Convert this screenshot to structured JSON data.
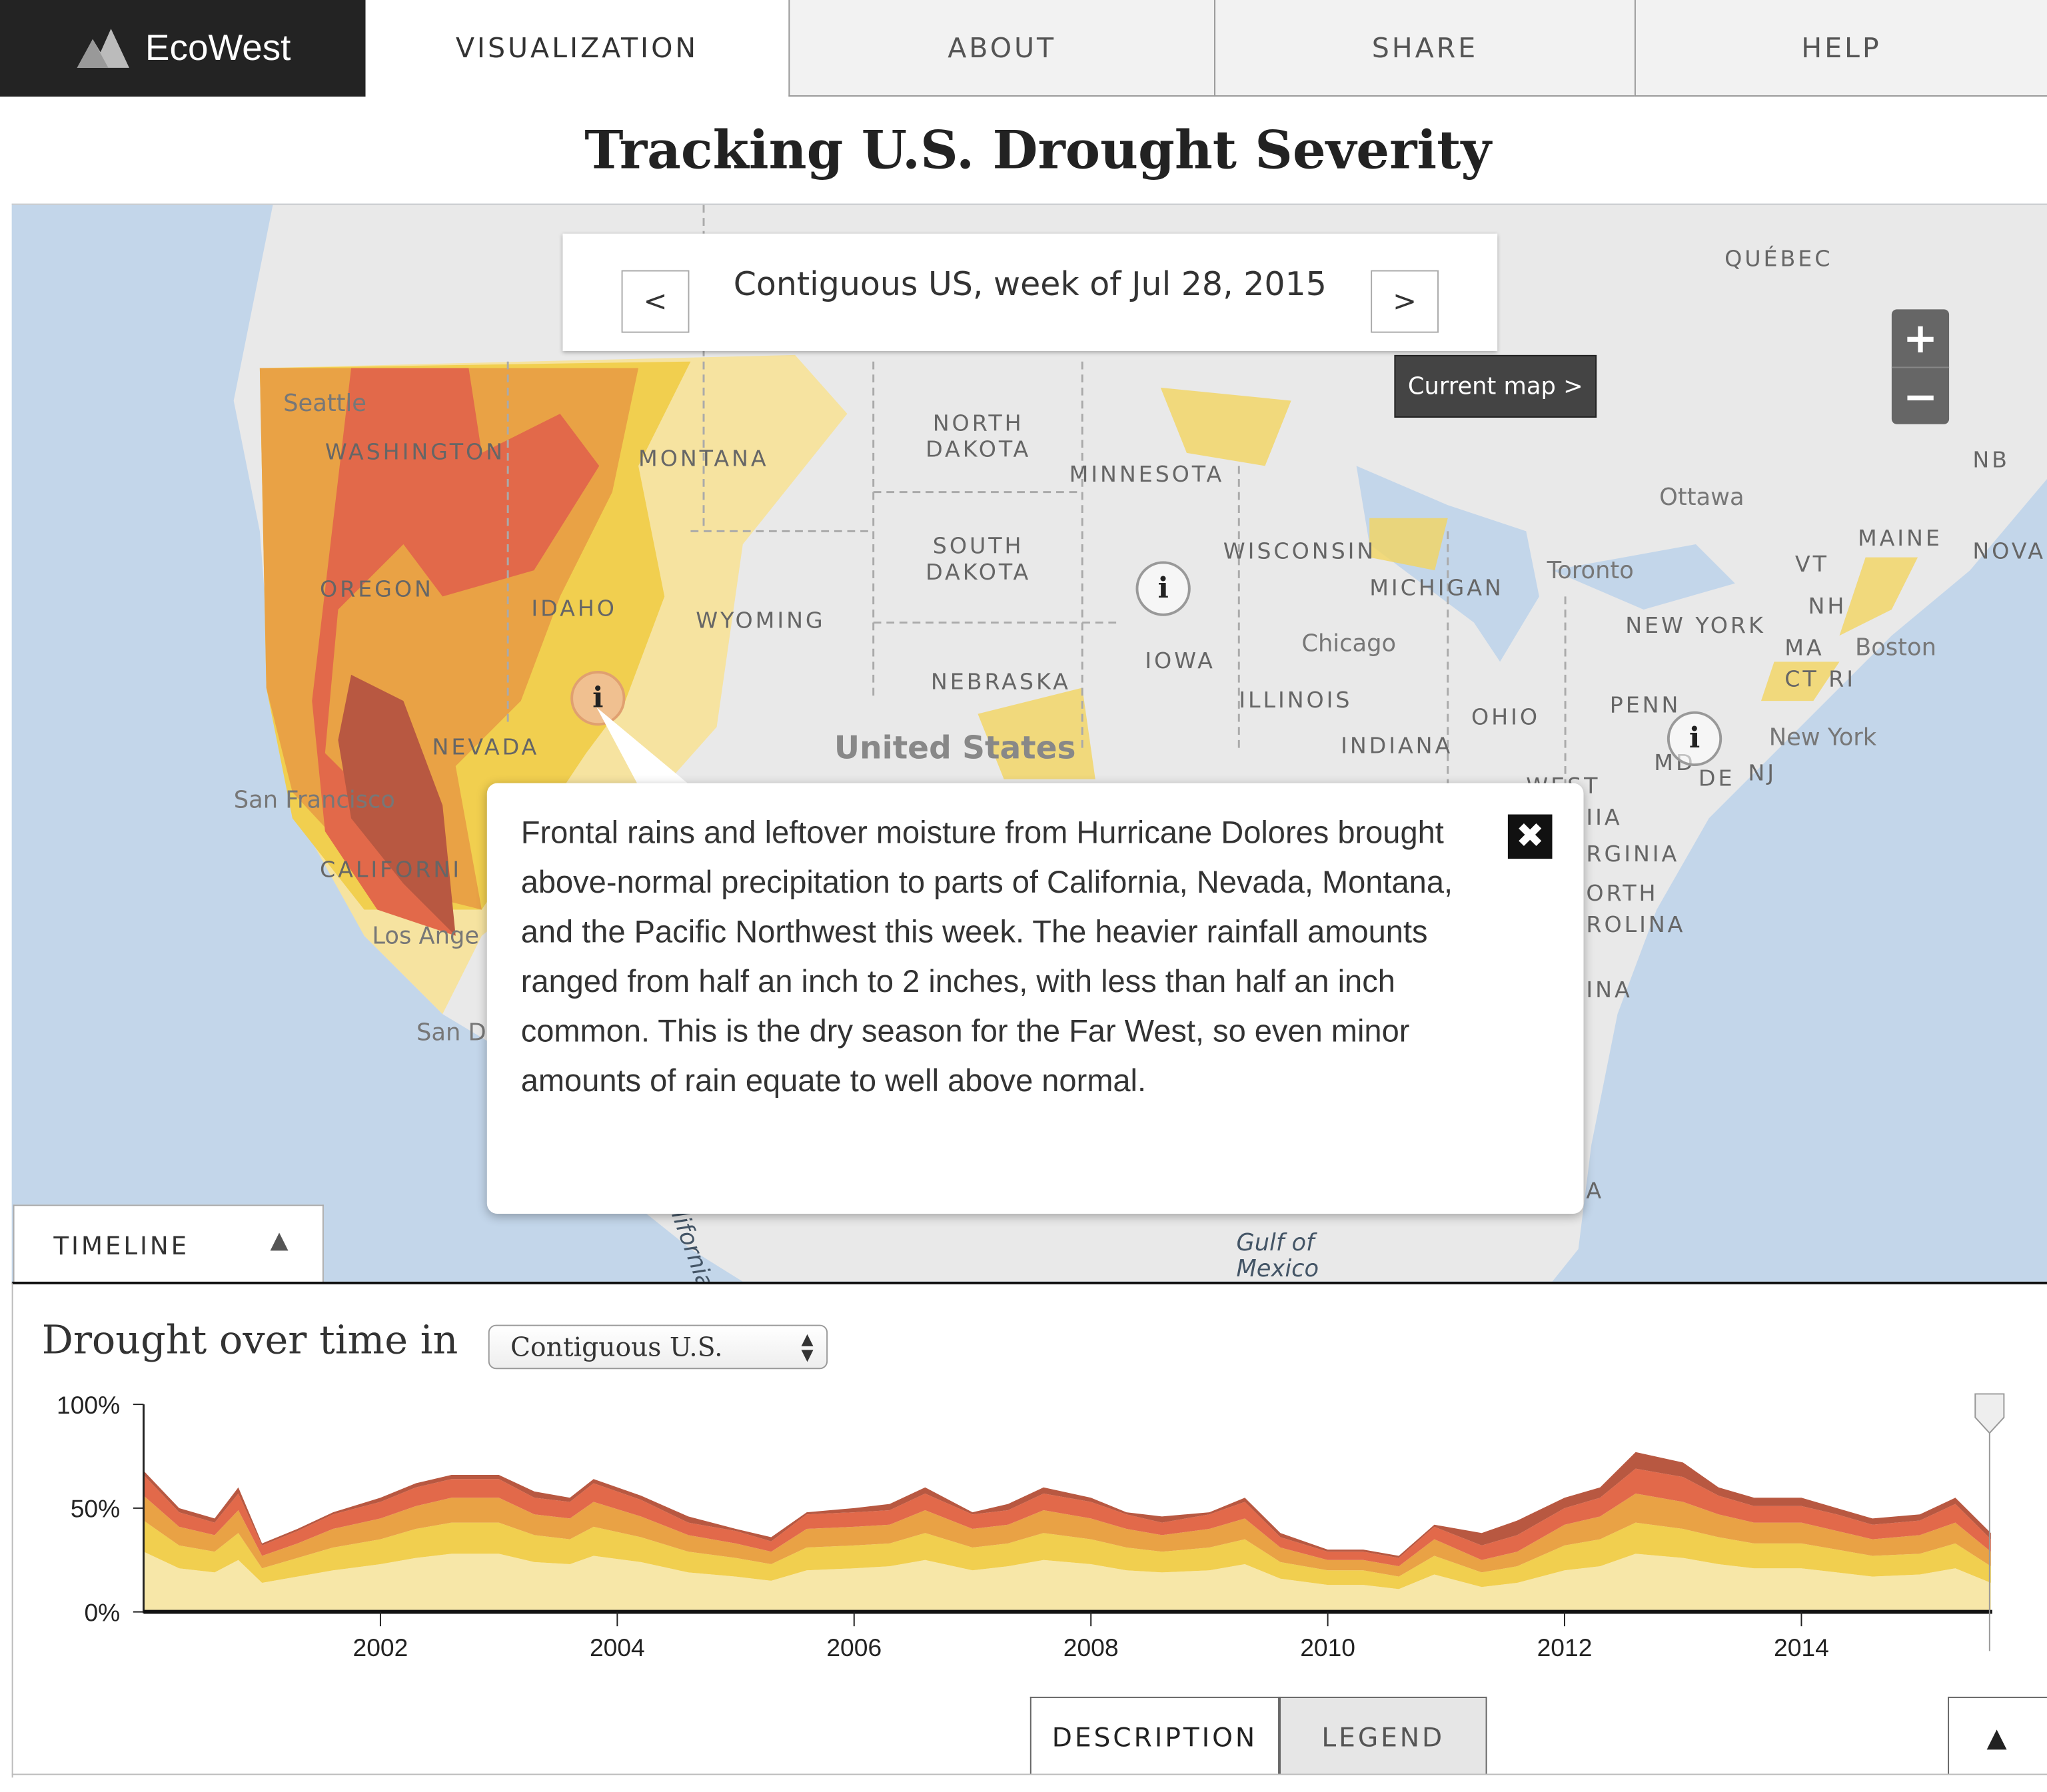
{
  "nav": {
    "logo": "EcoWest",
    "tabs": [
      {
        "label": "VISUALIZATION",
        "active": true
      },
      {
        "label": "ABOUT",
        "active": false
      },
      {
        "label": "SHARE",
        "active": false
      },
      {
        "label": "HELP",
        "active": false
      }
    ]
  },
  "page_title": "Tracking U.S. Drought Severity",
  "map": {
    "date_label": "Contiguous US, week of Jul 28, 2015",
    "prev_label": "<",
    "next_label": ">",
    "current_map_label": "Current map >",
    "zoom_in": "+",
    "zoom_out": "−",
    "info_icon": "i",
    "close_icon": "✖",
    "popup_text": "Frontal rains and leftover moisture from Hurricane Dolores brought above-normal precipitation to parts of California, Nevada, Montana, and the Pacific Northwest this week. The heavier rainfall amounts ranged from half an inch to 2 inches, with less than half an inch common. This is the dry season for the Far West, so even minor amounts of rain equate to well above normal.",
    "labels": {
      "washington": "WASHINGTON",
      "oregon": "OREGON",
      "idaho": "IDAHO",
      "montana": "MONTANA",
      "nevada": "NEVADA",
      "california": "CALIFORNI",
      "wyoming": "WYOMING",
      "north_dakota": "NORTH\nDAKOTA",
      "south_dakota": "SOUTH\nDAKOTA",
      "nebraska": "NEBRASKA",
      "minnesota": "MINNESOTA",
      "iowa": "IOWA",
      "wisconsin": "WISCONSIN",
      "michigan": "MICHIGAN",
      "illinois": "ILLINOIS",
      "indiana": "INDIANA",
      "ohio": "OHIO",
      "penn": "PENN",
      "new_york": "NEW YORK",
      "maine": "MAINE",
      "vt": "VT",
      "nh": "NH",
      "ma": "MA",
      "ct_ri": "CT RI",
      "md": "MD",
      "de": "DE",
      "nj": "NJ",
      "quebec": "QUÉBEC",
      "nb": "NB",
      "nova": "NOVA",
      "united_states": "United States",
      "gulf": "Gulf of\nMexico",
      "seattle": "Seattle",
      "san_francisco": "San Francisco",
      "los_angeles": "Los Ange",
      "san_diego": "San D",
      "chicago": "Chicago",
      "toronto": "Toronto",
      "ottawa": "Ottawa",
      "boston": "Boston",
      "new_york_city": "New York",
      "west_va": "WEST",
      "virginia": "IIA\nRGINIA",
      "north_carolina": "ORTH\nROLINA",
      "south_carolina": "INA",
      "a_label": "A",
      "california_gulf": "lifornia"
    }
  },
  "timeline": {
    "tab_label": "TIMELINE",
    "collapse_icon": "▲",
    "title": "Drought over time in",
    "region_select": "Contiguous U.S.",
    "bottom_tabs": [
      {
        "label": "DESCRIPTION",
        "active": true
      },
      {
        "label": "LEGEND",
        "active": false
      }
    ],
    "expand_icon": "▲"
  },
  "chart_data": {
    "type": "area",
    "stacked": true,
    "ylim": [
      0,
      100
    ],
    "xlim": [
      2000.0,
      2015.6
    ],
    "yticks": [
      "0%",
      "50%",
      "100%"
    ],
    "xticks": [
      "2002",
      "2004",
      "2006",
      "2008",
      "2010",
      "2012",
      "2014"
    ],
    "grid": false,
    "x": [
      2000.0,
      2000.3,
      2000.6,
      2000.8,
      2001.0,
      2001.3,
      2001.6,
      2002.0,
      2002.3,
      2002.6,
      2003.0,
      2003.3,
      2003.6,
      2003.8,
      2004.2,
      2004.6,
      2005.0,
      2005.3,
      2005.6,
      2006.0,
      2006.3,
      2006.6,
      2007.0,
      2007.3,
      2007.6,
      2008.0,
      2008.3,
      2008.6,
      2009.0,
      2009.3,
      2009.6,
      2010.0,
      2010.3,
      2010.6,
      2010.9,
      2011.3,
      2011.6,
      2012.0,
      2012.3,
      2012.6,
      2013.0,
      2013.3,
      2013.6,
      2014.0,
      2014.3,
      2014.6,
      2015.0,
      2015.3,
      2015.6
    ],
    "series": [
      {
        "color": "#f7e7a8",
        "values": [
          29,
          21,
          19,
          25,
          14,
          17,
          20,
          23,
          26,
          28,
          28,
          24,
          23,
          27,
          24,
          19,
          17,
          15,
          20,
          21,
          22,
          25,
          20,
          22,
          25,
          23,
          20,
          19,
          20,
          23,
          16,
          13,
          13,
          11,
          18,
          12,
          14,
          20,
          22,
          28,
          26,
          23,
          21,
          21,
          19,
          17,
          18,
          21,
          14
        ]
      },
      {
        "color": "#f1cf4f",
        "values": [
          15,
          11,
          10,
          13,
          7,
          9,
          11,
          12,
          14,
          15,
          15,
          13,
          12,
          14,
          12,
          10,
          9,
          8,
          11,
          11,
          11,
          13,
          11,
          11,
          13,
          12,
          11,
          10,
          11,
          12,
          8,
          7,
          7,
          6,
          9,
          7,
          8,
          12,
          13,
          15,
          14,
          13,
          12,
          12,
          11,
          10,
          10,
          12,
          8
        ]
      },
      {
        "color": "#e9a245",
        "values": [
          12,
          9,
          8,
          11,
          6,
          7,
          9,
          10,
          11,
          12,
          12,
          10,
          10,
          12,
          10,
          8,
          7,
          6,
          9,
          9,
          9,
          11,
          9,
          9,
          11,
          10,
          9,
          8,
          9,
          10,
          7,
          5,
          5,
          5,
          8,
          6,
          7,
          10,
          11,
          14,
          13,
          11,
          10,
          10,
          9,
          8,
          9,
          10,
          7
        ]
      },
      {
        "color": "#e2694a",
        "values": [
          10,
          7,
          6,
          8,
          5,
          6,
          7,
          8,
          9,
          9,
          9,
          8,
          8,
          9,
          8,
          6,
          6,
          5,
          7,
          7,
          7,
          8,
          7,
          7,
          8,
          8,
          7,
          6,
          7,
          8,
          5,
          4,
          4,
          4,
          6,
          7,
          8,
          8,
          9,
          12,
          12,
          9,
          8,
          8,
          8,
          7,
          7,
          9,
          6
        ]
      },
      {
        "color": "#b85841",
        "values": [
          2,
          2,
          2,
          3,
          1,
          1,
          1,
          2,
          2,
          2,
          2,
          3,
          2,
          2,
          2,
          3,
          1,
          2,
          1,
          2,
          3,
          3,
          1,
          3,
          3,
          2,
          1,
          3,
          1,
          2,
          2,
          1,
          1,
          1,
          1,
          6,
          7,
          5,
          5,
          8,
          7,
          4,
          4,
          4,
          3,
          3,
          3,
          3,
          3
        ]
      }
    ]
  }
}
